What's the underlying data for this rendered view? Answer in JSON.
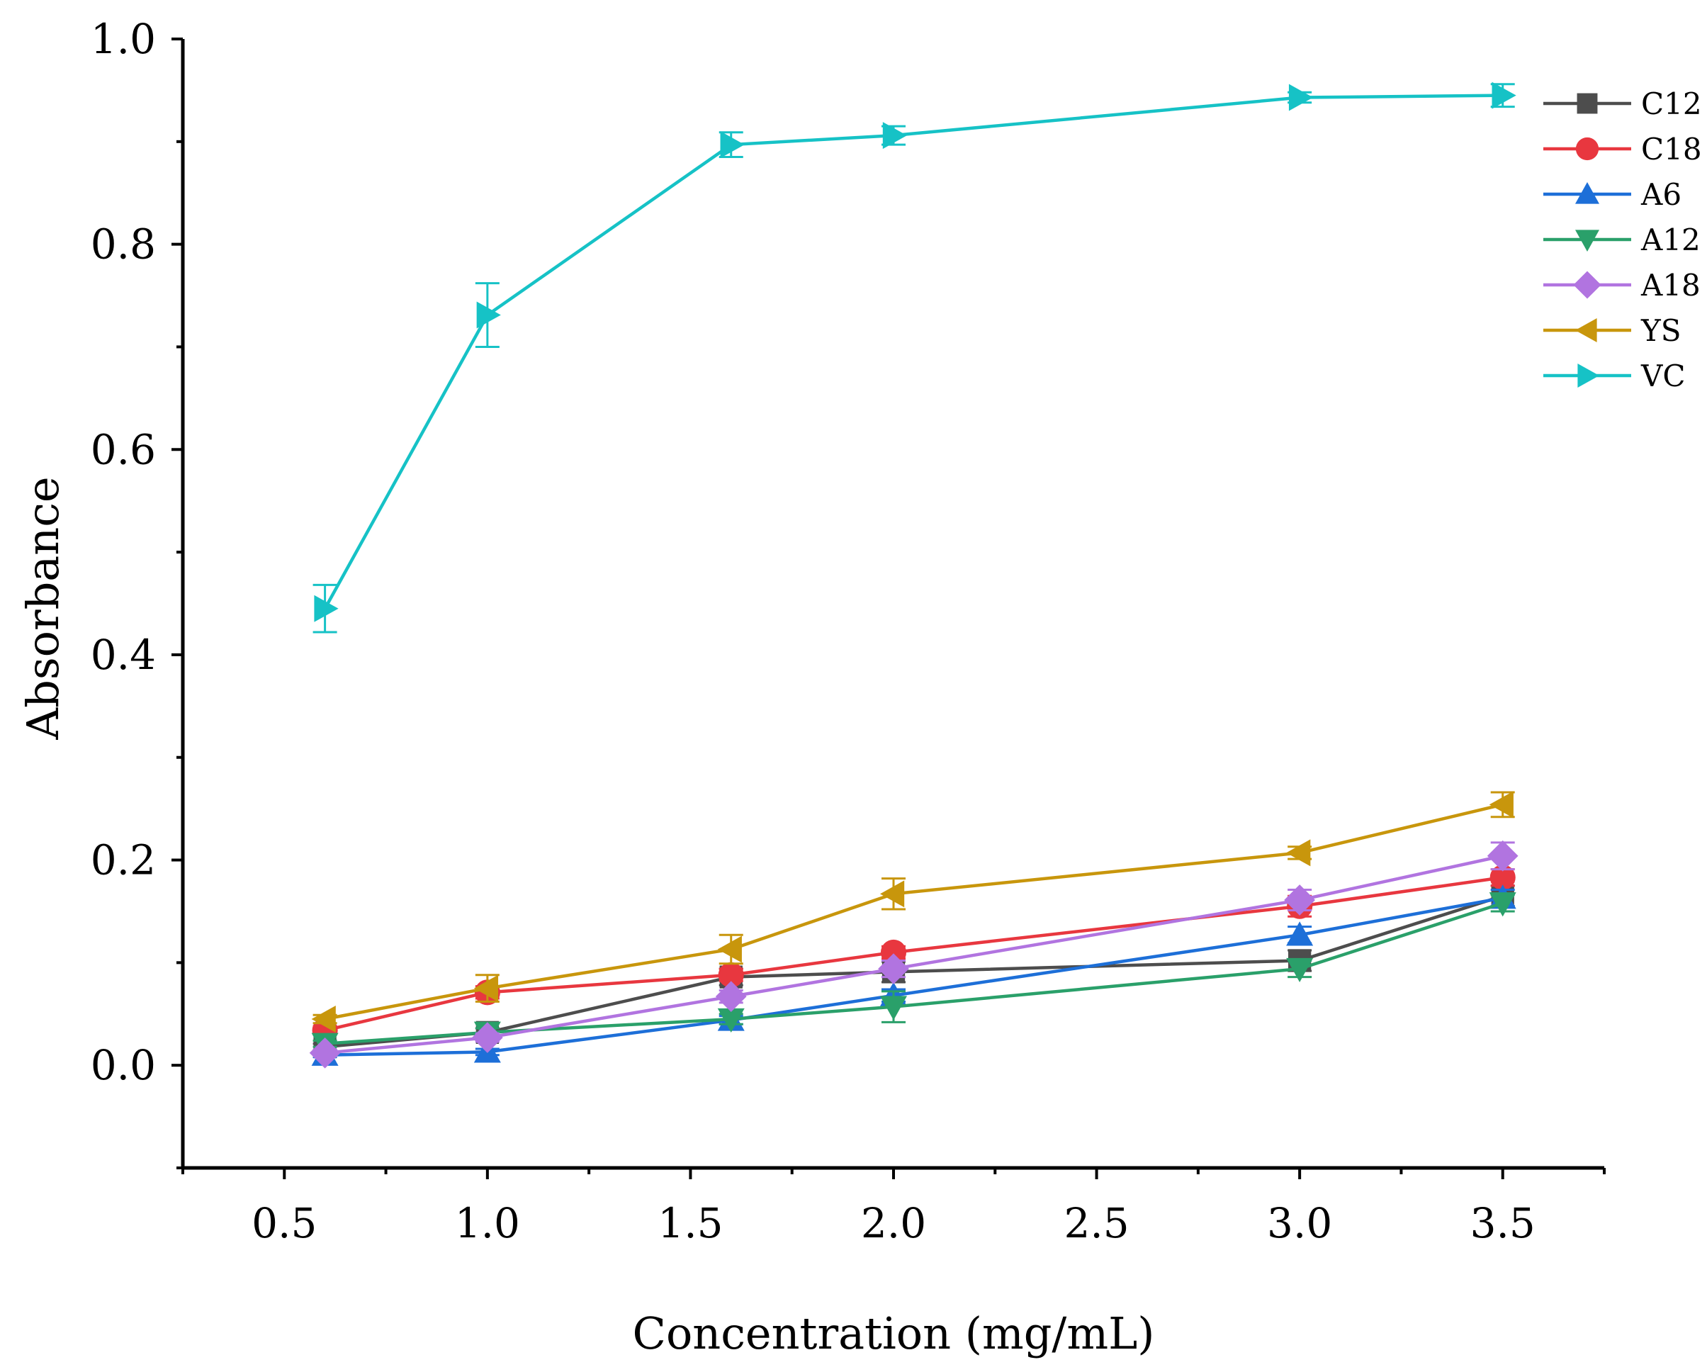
{
  "chart_data": {
    "type": "line",
    "xlabel": "Concentration (mg/mL)",
    "ylabel": "Absorbance",
    "x_ticks": [
      "0.5",
      "1.0",
      "1.5",
      "2.0",
      "2.5",
      "3.0",
      "3.5"
    ],
    "y_ticks": [
      "0.0",
      "0.2",
      "0.4",
      "0.6",
      "0.8",
      "1.0"
    ],
    "xlim": [
      0.25,
      3.75
    ],
    "ylim": [
      -0.1,
      1.0
    ],
    "legend_position": "top-right",
    "grid": false,
    "x": [
      0.6,
      1.0,
      1.6,
      2.0,
      3.0,
      3.5
    ],
    "series": [
      {
        "name": "C12",
        "marker": "square",
        "color": "#4d4d4d",
        "values": [
          0.018,
          0.032,
          0.086,
          0.091,
          0.102,
          0.165
        ],
        "errors": [
          0.003,
          0.004,
          0.008,
          0.01,
          0.01,
          0.01
        ]
      },
      {
        "name": "C18",
        "marker": "circle",
        "color": "#e8373f",
        "values": [
          0.034,
          0.071,
          0.088,
          0.11,
          0.155,
          0.183
        ],
        "errors": [
          0.004,
          0.006,
          0.006,
          0.006,
          0.01,
          0.008
        ]
      },
      {
        "name": "A6",
        "marker": "triangle-up",
        "color": "#1d6fd8",
        "values": [
          0.01,
          0.013,
          0.044,
          0.068,
          0.127,
          0.163
        ],
        "errors": [
          0.002,
          0.003,
          0.004,
          0.006,
          0.008,
          0.008
        ]
      },
      {
        "name": "A12",
        "marker": "triangle-down",
        "color": "#2aa06a",
        "values": [
          0.021,
          0.032,
          0.045,
          0.057,
          0.094,
          0.158
        ],
        "errors": [
          0.003,
          0.004,
          0.005,
          0.015,
          0.008,
          0.008
        ]
      },
      {
        "name": "A18",
        "marker": "diamond",
        "color": "#b174e0",
        "values": [
          0.012,
          0.027,
          0.067,
          0.094,
          0.161,
          0.204
        ],
        "errors": [
          0.003,
          0.004,
          0.006,
          0.008,
          0.01,
          0.013
        ]
      },
      {
        "name": "YS",
        "marker": "triangle-left",
        "color": "#c8960c",
        "values": [
          0.045,
          0.075,
          0.113,
          0.167,
          0.207,
          0.254
        ],
        "errors": [
          0.004,
          0.013,
          0.014,
          0.015,
          0.006,
          0.012
        ]
      },
      {
        "name": "VC",
        "marker": "triangle-right",
        "color": "#16c2c6",
        "values": [
          0.445,
          0.731,
          0.897,
          0.906,
          0.943,
          0.945
        ],
        "errors": [
          0.023,
          0.031,
          0.012,
          0.009,
          0.005,
          0.011
        ]
      }
    ]
  }
}
